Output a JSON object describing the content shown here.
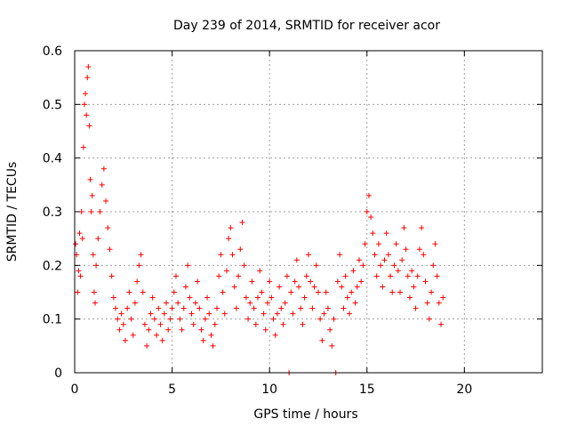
{
  "chart_data": {
    "type": "scatter",
    "title": "Day 239 of 2014, SRMTID for receiver acor",
    "xlabel": "GPS time / hours",
    "ylabel": "SRMTID / TECUs",
    "xlim": [
      0,
      24
    ],
    "ylim": [
      0,
      0.6
    ],
    "x_ticks": [
      0,
      5,
      10,
      15,
      20
    ],
    "x_tick_labels": [
      "0",
      "5",
      "10",
      "15",
      "20"
    ],
    "y_ticks": [
      0,
      0.1,
      0.2,
      0.3,
      0.4,
      0.5,
      0.6
    ],
    "y_tick_labels": [
      "0",
      "0.1",
      "0.2",
      "0.3",
      "0.4",
      "0.5",
      "0.6"
    ],
    "grid": true,
    "marker": "+",
    "color": "#ff0000",
    "series": [
      {
        "name": "SRMTID",
        "points": [
          [
            0.05,
            0.24
          ],
          [
            0.1,
            0.22
          ],
          [
            0.15,
            0.15
          ],
          [
            0.2,
            0.19
          ],
          [
            0.25,
            0.26
          ],
          [
            0.3,
            0.18
          ],
          [
            0.35,
            0.3
          ],
          [
            0.4,
            0.25
          ],
          [
            0.45,
            0.42
          ],
          [
            0.5,
            0.5
          ],
          [
            0.55,
            0.52
          ],
          [
            0.6,
            0.48
          ],
          [
            0.65,
            0.55
          ],
          [
            0.7,
            0.57
          ],
          [
            0.75,
            0.46
          ],
          [
            0.8,
            0.36
          ],
          [
            0.85,
            0.3
          ],
          [
            0.9,
            0.33
          ],
          [
            0.95,
            0.22
          ],
          [
            1.0,
            0.15
          ],
          [
            1.05,
            0.13
          ],
          [
            1.1,
            0.2
          ],
          [
            1.2,
            0.25
          ],
          [
            1.3,
            0.3
          ],
          [
            1.4,
            0.35
          ],
          [
            1.5,
            0.38
          ],
          [
            1.6,
            0.32
          ],
          [
            1.7,
            0.27
          ],
          [
            1.8,
            0.23
          ],
          [
            1.9,
            0.18
          ],
          [
            2.0,
            0.14
          ],
          [
            2.1,
            0.12
          ],
          [
            2.2,
            0.1
          ],
          [
            2.3,
            0.08
          ],
          [
            2.4,
            0.11
          ],
          [
            2.5,
            0.09
          ],
          [
            2.6,
            0.06
          ],
          [
            2.7,
            0.12
          ],
          [
            2.8,
            0.15
          ],
          [
            2.9,
            0.1
          ],
          [
            3.0,
            0.07
          ],
          [
            3.1,
            0.13
          ],
          [
            3.2,
            0.17
          ],
          [
            3.3,
            0.2
          ],
          [
            3.4,
            0.22
          ],
          [
            3.5,
            0.15
          ],
          [
            3.6,
            0.09
          ],
          [
            3.7,
            0.05
          ],
          [
            3.8,
            0.08
          ],
          [
            3.9,
            0.11
          ],
          [
            4.0,
            0.14
          ],
          [
            4.1,
            0.1
          ],
          [
            4.2,
            0.07
          ],
          [
            4.3,
            0.12
          ],
          [
            4.4,
            0.09
          ],
          [
            4.5,
            0.06
          ],
          [
            4.6,
            0.11
          ],
          [
            4.7,
            0.13
          ],
          [
            4.8,
            0.08
          ],
          [
            4.9,
            0.1
          ],
          [
            5.0,
            0.12
          ],
          [
            5.1,
            0.15
          ],
          [
            5.2,
            0.18
          ],
          [
            5.3,
            0.13
          ],
          [
            5.4,
            0.1
          ],
          [
            5.5,
            0.08
          ],
          [
            5.6,
            0.12
          ],
          [
            5.7,
            0.16
          ],
          [
            5.8,
            0.2
          ],
          [
            5.9,
            0.14
          ],
          [
            6.0,
            0.11
          ],
          [
            6.1,
            0.09
          ],
          [
            6.2,
            0.13
          ],
          [
            6.3,
            0.17
          ],
          [
            6.4,
            0.12
          ],
          [
            6.5,
            0.08
          ],
          [
            6.6,
            0.06
          ],
          [
            6.7,
            0.1
          ],
          [
            6.8,
            0.14
          ],
          [
            6.9,
            0.11
          ],
          [
            7.0,
            0.07
          ],
          [
            7.1,
            0.05
          ],
          [
            7.2,
            0.09
          ],
          [
            7.3,
            0.12
          ],
          [
            7.4,
            0.18
          ],
          [
            7.5,
            0.22
          ],
          [
            7.6,
            0.15
          ],
          [
            7.7,
            0.11
          ],
          [
            7.8,
            0.19
          ],
          [
            7.9,
            0.25
          ],
          [
            8.0,
            0.27
          ],
          [
            8.1,
            0.22
          ],
          [
            8.2,
            0.16
          ],
          [
            8.3,
            0.12
          ],
          [
            8.4,
            0.18
          ],
          [
            8.5,
            0.23
          ],
          [
            8.6,
            0.28
          ],
          [
            8.7,
            0.2
          ],
          [
            8.8,
            0.14
          ],
          [
            8.9,
            0.1
          ],
          [
            9.0,
            0.13
          ],
          [
            9.1,
            0.17
          ],
          [
            9.2,
            0.12
          ],
          [
            9.3,
            0.09
          ],
          [
            9.4,
            0.14
          ],
          [
            9.5,
            0.19
          ],
          [
            9.6,
            0.15
          ],
          [
            9.7,
            0.11
          ],
          [
            9.8,
            0.08
          ],
          [
            9.9,
            0.13
          ],
          [
            10.0,
            0.17
          ],
          [
            10.1,
            0.14
          ],
          [
            10.2,
            0.1
          ],
          [
            10.3,
            0.07
          ],
          [
            10.4,
            0.11
          ],
          [
            10.5,
            0.16
          ],
          [
            10.6,
            0.12
          ],
          [
            10.7,
            0.09
          ],
          [
            10.8,
            0.13
          ],
          [
            10.9,
            0.18
          ],
          [
            11.0,
            0.0
          ],
          [
            11.1,
            0.15
          ],
          [
            11.2,
            0.11
          ],
          [
            11.3,
            0.17
          ],
          [
            11.4,
            0.21
          ],
          [
            11.5,
            0.16
          ],
          [
            11.6,
            0.12
          ],
          [
            11.7,
            0.09
          ],
          [
            11.8,
            0.14
          ],
          [
            11.9,
            0.18
          ],
          [
            12.0,
            0.22
          ],
          [
            12.1,
            0.17
          ],
          [
            12.2,
            0.12
          ],
          [
            12.3,
            0.16
          ],
          [
            12.4,
            0.2
          ],
          [
            12.5,
            0.15
          ],
          [
            12.6,
            0.1
          ],
          [
            12.7,
            0.06
          ],
          [
            12.8,
            0.11
          ],
          [
            12.9,
            0.15
          ],
          [
            13.0,
            0.12
          ],
          [
            13.1,
            0.08
          ],
          [
            13.2,
            0.05
          ],
          [
            13.3,
            0.1
          ],
          [
            13.4,
            0.0
          ],
          [
            13.5,
            0.17
          ],
          [
            13.6,
            0.22
          ],
          [
            13.7,
            0.16
          ],
          [
            13.8,
            0.12
          ],
          [
            13.9,
            0.18
          ],
          [
            14.0,
            0.14
          ],
          [
            14.1,
            0.11
          ],
          [
            14.2,
            0.15
          ],
          [
            14.3,
            0.19
          ],
          [
            14.4,
            0.13
          ],
          [
            14.5,
            0.16
          ],
          [
            14.6,
            0.21
          ],
          [
            14.7,
            0.17
          ],
          [
            14.8,
            0.2
          ],
          [
            14.9,
            0.24
          ],
          [
            15.0,
            0.3
          ],
          [
            15.1,
            0.33
          ],
          [
            15.2,
            0.29
          ],
          [
            15.3,
            0.26
          ],
          [
            15.4,
            0.22
          ],
          [
            15.5,
            0.18
          ],
          [
            15.6,
            0.24
          ],
          [
            15.7,
            0.2
          ],
          [
            15.8,
            0.16
          ],
          [
            15.9,
            0.21
          ],
          [
            16.0,
            0.26
          ],
          [
            16.1,
            0.22
          ],
          [
            16.2,
            0.18
          ],
          [
            16.3,
            0.15
          ],
          [
            16.4,
            0.2
          ],
          [
            16.5,
            0.24
          ],
          [
            16.6,
            0.19
          ],
          [
            16.7,
            0.15
          ],
          [
            16.8,
            0.21
          ],
          [
            16.9,
            0.27
          ],
          [
            17.0,
            0.23
          ],
          [
            17.1,
            0.18
          ],
          [
            17.2,
            0.14
          ],
          [
            17.3,
            0.19
          ],
          [
            17.4,
            0.16
          ],
          [
            17.5,
            0.12
          ],
          [
            17.6,
            0.18
          ],
          [
            17.7,
            0.23
          ],
          [
            17.8,
            0.27
          ],
          [
            17.9,
            0.22
          ],
          [
            18.0,
            0.17
          ],
          [
            18.1,
            0.13
          ],
          [
            18.2,
            0.1
          ],
          [
            18.3,
            0.15
          ],
          [
            18.4,
            0.2
          ],
          [
            18.5,
            0.24
          ],
          [
            18.6,
            0.18
          ],
          [
            18.7,
            0.13
          ],
          [
            18.8,
            0.09
          ],
          [
            18.9,
            0.14
          ]
        ]
      }
    ]
  }
}
